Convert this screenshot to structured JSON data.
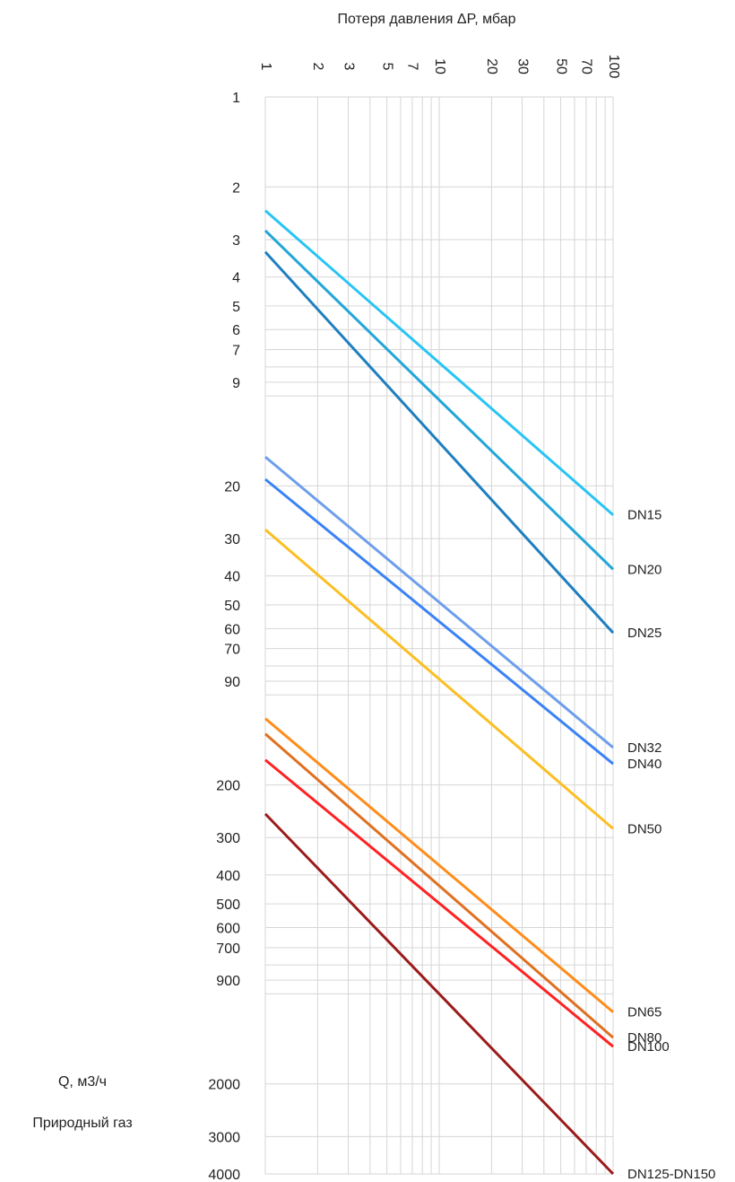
{
  "chart_data": {
    "type": "line",
    "title": "",
    "xlabel": "Потеря давления ΔP, мбар",
    "ylabel": "Q, м3/ч",
    "ylabel2": "Природный газ",
    "x_scale": "log",
    "y_scale": "log",
    "y_inverted": true,
    "xlim": [
      1,
      100
    ],
    "ylim": [
      1,
      4000
    ],
    "grid": true,
    "legend": "labels at right end of each line",
    "x_ticks": [
      "1",
      "2",
      "3",
      "5",
      "7",
      "10",
      "20",
      "30",
      "50",
      "70",
      "100"
    ],
    "y_ticks": [
      "1",
      "2",
      "3",
      "4",
      "5",
      "6",
      "7",
      "9",
      "20",
      "30",
      "40",
      "50",
      "60",
      "70",
      "90",
      "200",
      "300",
      "400",
      "500",
      "600",
      "700",
      "900",
      "2000",
      "3000",
      "4000"
    ],
    "series": [
      {
        "name": "DN15",
        "color": "#29c4f4",
        "x": [
          1,
          100
        ],
        "y": [
          2.4,
          25
        ]
      },
      {
        "name": "DN20",
        "color": "#23a6d8",
        "x": [
          1,
          100
        ],
        "y": [
          2.8,
          38
        ]
      },
      {
        "name": "DN25",
        "color": "#1e7fbf",
        "x": [
          1,
          100
        ],
        "y": [
          3.3,
          62
        ]
      },
      {
        "name": "DN32",
        "color": "#6d9eeb",
        "x": [
          1,
          100
        ],
        "y": [
          16,
          150
        ]
      },
      {
        "name": "DN40",
        "color": "#3b82f6",
        "x": [
          1,
          100
        ],
        "y": [
          19,
          170
        ]
      },
      {
        "name": "DN50",
        "color": "#fbbf24",
        "x": [
          1,
          100
        ],
        "y": [
          28,
          280
        ]
      },
      {
        "name": "DN65",
        "color": "#ff8c1a",
        "x": [
          1,
          100
        ],
        "y": [
          120,
          1150
        ]
      },
      {
        "name": "DN80",
        "color": "#e07020",
        "x": [
          1,
          100
        ],
        "y": [
          135,
          1400
        ]
      },
      {
        "name": "DN100",
        "color": "#ff2222",
        "x": [
          1,
          100
        ],
        "y": [
          165,
          1500
        ]
      },
      {
        "name": "DN125-DN150",
        "color": "#9b1b1b",
        "x": [
          1,
          100
        ],
        "y": [
          250,
          4000
        ]
      }
    ]
  }
}
